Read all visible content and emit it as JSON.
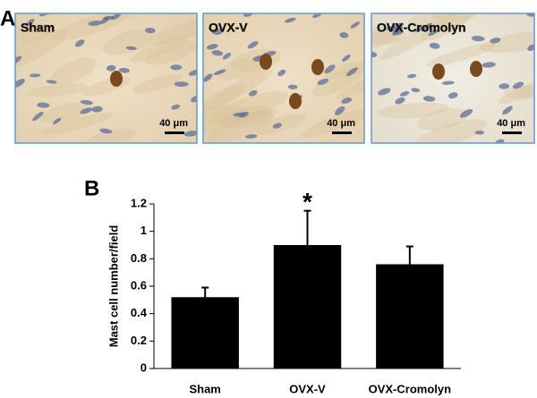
{
  "panel_a": {
    "label": "A",
    "images": [
      {
        "label": "Sham",
        "scale": "40 μm"
      },
      {
        "label": "OVX-V",
        "scale": "40 μm"
      },
      {
        "label": "OVX-Cromolyn",
        "scale": "40 μm"
      }
    ]
  },
  "chart_data": {
    "type": "bar",
    "panel_label": "B",
    "ylabel": "Mast cell number/field",
    "categories": [
      "Sham",
      "OVX-V",
      "OVX-Cromolyn"
    ],
    "values": [
      0.52,
      0.9,
      0.76
    ],
    "errors": [
      0.07,
      0.25,
      0.13
    ],
    "color": "#000000",
    "ylim": [
      0,
      1.2
    ],
    "yticks": [
      0,
      0.2,
      0.4,
      0.6,
      0.8,
      1,
      1.2
    ],
    "annotations": [
      {
        "text": "*",
        "category": "OVX-V"
      }
    ]
  }
}
